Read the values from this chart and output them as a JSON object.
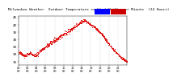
{
  "title": "Milwaukee Weather  Outdoor Temperature vs Wind Chill  per Minute  (24 Hours)",
  "legend_color_outdoor": "#0000ff",
  "legend_color_windchill": "#cc0000",
  "dot_color": "#dd0000",
  "background_color": "#ffffff",
  "grid_color": "#aaaaaa",
  "ylim": [
    13,
    46
  ],
  "yticks": [
    15,
    20,
    25,
    30,
    35,
    40,
    45
  ],
  "ylabel_fontsize": 3.0,
  "xlabel_fontsize": 2.5,
  "title_fontsize": 3.2,
  "num_points": 1440
}
